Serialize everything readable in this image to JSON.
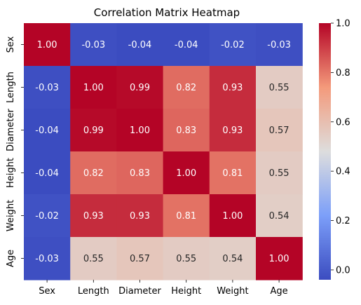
{
  "chart_data": {
    "type": "heatmap",
    "title": "Correlation Matrix Heatmap",
    "x_categories": [
      "Sex",
      "Length",
      "Diameter",
      "Height",
      "Weight",
      "Age"
    ],
    "y_categories": [
      "Sex",
      "Length",
      "Diameter",
      "Height",
      "Weight",
      "Age"
    ],
    "values": [
      [
        1.0,
        -0.03,
        -0.04,
        -0.04,
        -0.02,
        -0.03
      ],
      [
        -0.03,
        1.0,
        0.99,
        0.82,
        0.93,
        0.55
      ],
      [
        -0.04,
        0.99,
        1.0,
        0.83,
        0.93,
        0.57
      ],
      [
        -0.04,
        0.82,
        0.83,
        1.0,
        0.81,
        0.55
      ],
      [
        -0.02,
        0.93,
        0.93,
        0.81,
        1.0,
        0.54
      ],
      [
        -0.03,
        0.55,
        0.57,
        0.55,
        0.54,
        1.0
      ]
    ],
    "colormap": "coolwarm",
    "vmin": -0.04,
    "vmax": 1.0,
    "colorbar_ticks": [
      0.0,
      0.2,
      0.4,
      0.6,
      0.8,
      1.0
    ],
    "colorbar_tick_labels": [
      "0.0",
      "0.2",
      "0.4",
      "0.6",
      "0.8",
      "1.0"
    ],
    "annotation_format": "2 decimals",
    "annotation_colors": {
      "dark_text": "#262626",
      "light_text": "#ffffff"
    },
    "grid": false,
    "legend": "colorbar-right"
  }
}
